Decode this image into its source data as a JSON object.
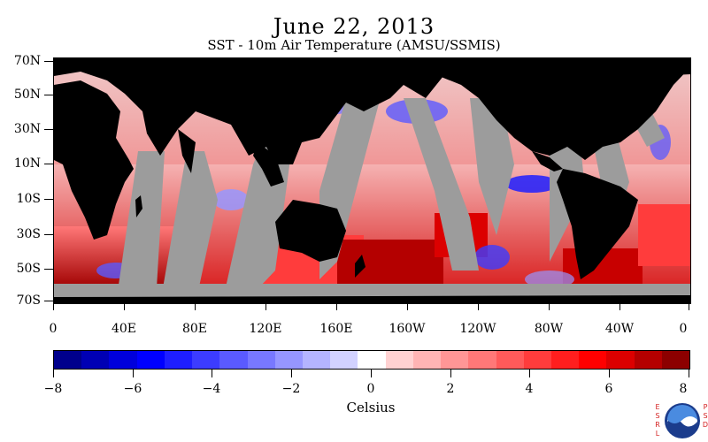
{
  "title": "June 22, 2013",
  "subtitle": "SST - 10m Air Temperature (AMSU/SSMIS)",
  "lat_labels": [
    "70N",
    "50N",
    "30N",
    "10N",
    "10S",
    "30S",
    "50S",
    "70S"
  ],
  "lon_labels": [
    "0",
    "40E",
    "80E",
    "120E",
    "160E",
    "160W",
    "120W",
    "80W",
    "40W",
    "0"
  ],
  "colorbar": {
    "labels": [
      "−8",
      "−6",
      "−4",
      "−2",
      "0",
      "2",
      "4",
      "6",
      "8"
    ],
    "unit": "Celsius",
    "colors": [
      "#00008c",
      "#0000b4",
      "#0000dc",
      "#0000ff",
      "#1e1eff",
      "#3c3cff",
      "#5a5aff",
      "#7878ff",
      "#9696ff",
      "#b4b4ff",
      "#d2d2ff",
      "#ffffff",
      "#ffd2d2",
      "#ffb4b4",
      "#ff9696",
      "#ff7878",
      "#ff5a5a",
      "#ff3c3c",
      "#ff1e1e",
      "#ff0000",
      "#dc0000",
      "#b40000",
      "#8c0000"
    ]
  },
  "map_colors": {
    "land": "#000000",
    "no_data": "#9c9c9c"
  },
  "logo": {
    "esrl": "ESRL",
    "psd": "PSD",
    "icon": "noaa-logo-icon"
  }
}
